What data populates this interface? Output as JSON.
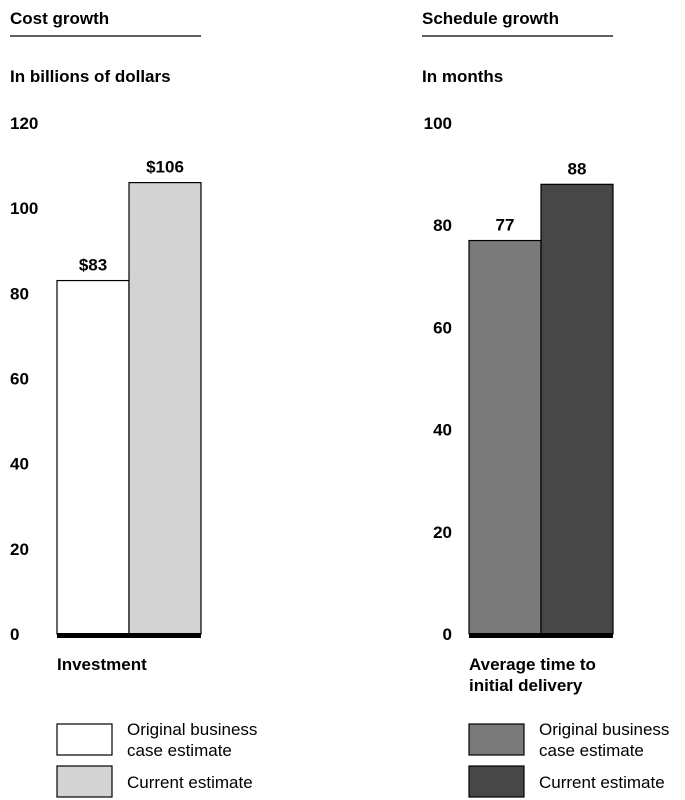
{
  "chart_data": [
    {
      "type": "bar",
      "title": "Cost growth",
      "subtitle": "In billions of dollars",
      "xlabel": "Investment",
      "ylabel": "",
      "ylim": [
        0,
        120
      ],
      "yticks": [
        0,
        20,
        40,
        60,
        80,
        100,
        120
      ],
      "categories": [
        "Investment"
      ],
      "series": [
        {
          "name": "Original business case estimate",
          "values": [
            83
          ],
          "labels": [
            "$83"
          ],
          "color": "#ffffff"
        },
        {
          "name": "Current estimate",
          "values": [
            106
          ],
          "labels": [
            "$106"
          ],
          "color": "#d3d3d3"
        }
      ],
      "legend": {
        "position": "bottom",
        "items": [
          {
            "lines": [
              "Original business",
              "case estimate"
            ],
            "color": "#ffffff"
          },
          {
            "lines": [
              "Current estimate"
            ],
            "color": "#d3d3d3"
          }
        ]
      },
      "grid": false
    },
    {
      "type": "bar",
      "title": "Schedule growth",
      "subtitle": "In months",
      "xlabel": "Average time to initial delivery",
      "xlabel_lines": [
        "Average time to",
        "initial delivery"
      ],
      "ylabel": "",
      "ylim": [
        0,
        100
      ],
      "yticks": [
        0,
        20,
        40,
        60,
        80,
        100
      ],
      "categories": [
        "Average time to initial delivery"
      ],
      "series": [
        {
          "name": "Original business case estimate",
          "values": [
            77
          ],
          "labels": [
            "77"
          ],
          "color": "#7a7a7a"
        },
        {
          "name": "Current estimate",
          "values": [
            88
          ],
          "labels": [
            "88"
          ],
          "color": "#474747"
        }
      ],
      "legend": {
        "position": "bottom",
        "items": [
          {
            "lines": [
              "Original business",
              "case estimate"
            ],
            "color": "#7a7a7a"
          },
          {
            "lines": [
              "Current estimate"
            ],
            "color": "#474747"
          }
        ]
      },
      "grid": false
    }
  ]
}
